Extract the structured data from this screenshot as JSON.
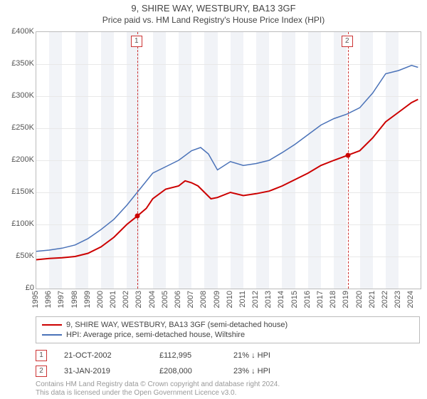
{
  "title": "9, SHIRE WAY, WESTBURY, BA13 3GF",
  "subtitle": "Price paid vs. HM Land Registry's House Price Index (HPI)",
  "chart": {
    "type": "line",
    "background_color": "#ffffff",
    "grid_color": "#e8e8e8",
    "band_color": "#f1f3f7",
    "axis_color": "#bbbbbb",
    "x_years": [
      1995,
      1996,
      1997,
      1998,
      1999,
      2000,
      2001,
      2002,
      2003,
      2004,
      2005,
      2006,
      2007,
      2008,
      2009,
      2010,
      2011,
      2012,
      2013,
      2014,
      2015,
      2016,
      2017,
      2018,
      2019,
      2020,
      2021,
      2022,
      2023,
      2024
    ],
    "ylim": [
      0,
      400000
    ],
    "ytick_step": 50000,
    "y_tick_labels": [
      "£0",
      "£50K",
      "£100K",
      "£150K",
      "£200K",
      "£250K",
      "£300K",
      "£350K",
      "£400K"
    ],
    "bands": [
      [
        1996,
        1997
      ],
      [
        1998,
        1999
      ],
      [
        2000,
        2001
      ],
      [
        2002,
        2003
      ],
      [
        2004,
        2005
      ],
      [
        2006,
        2007
      ],
      [
        2008,
        2009
      ],
      [
        2010,
        2011
      ],
      [
        2012,
        2013
      ],
      [
        2014,
        2015
      ],
      [
        2016,
        2017
      ],
      [
        2018,
        2019
      ],
      [
        2020,
        2021
      ],
      [
        2022,
        2023
      ]
    ],
    "series": [
      {
        "name": "paid",
        "label": "9, SHIRE WAY, WESTBURY, BA13 3GF (semi-detached house)",
        "color": "#cc0000",
        "width": 2,
        "data": [
          [
            1995.0,
            45000
          ],
          [
            1996.0,
            47000
          ],
          [
            1997.0,
            48000
          ],
          [
            1998.0,
            50000
          ],
          [
            1999.0,
            55000
          ],
          [
            2000.0,
            65000
          ],
          [
            2001.0,
            80000
          ],
          [
            2002.0,
            100000
          ],
          [
            2002.8,
            112995
          ],
          [
            2003.5,
            125000
          ],
          [
            2004.0,
            140000
          ],
          [
            2005.0,
            155000
          ],
          [
            2006.0,
            160000
          ],
          [
            2006.5,
            168000
          ],
          [
            2007.0,
            165000
          ],
          [
            2007.5,
            160000
          ],
          [
            2008.0,
            150000
          ],
          [
            2008.5,
            140000
          ],
          [
            2009.0,
            142000
          ],
          [
            2010.0,
            150000
          ],
          [
            2011.0,
            145000
          ],
          [
            2012.0,
            148000
          ],
          [
            2013.0,
            152000
          ],
          [
            2014.0,
            160000
          ],
          [
            2015.0,
            170000
          ],
          [
            2016.0,
            180000
          ],
          [
            2017.0,
            192000
          ],
          [
            2018.0,
            200000
          ],
          [
            2019.08,
            208000
          ],
          [
            2020.0,
            215000
          ],
          [
            2021.0,
            235000
          ],
          [
            2022.0,
            260000
          ],
          [
            2023.0,
            275000
          ],
          [
            2024.0,
            290000
          ],
          [
            2024.5,
            295000
          ]
        ]
      },
      {
        "name": "hpi",
        "label": "HPI: Average price, semi-detached house, Wiltshire",
        "color": "#4a72b8",
        "width": 1.5,
        "data": [
          [
            1995.0,
            58000
          ],
          [
            1996.0,
            60000
          ],
          [
            1997.0,
            63000
          ],
          [
            1998.0,
            68000
          ],
          [
            1999.0,
            78000
          ],
          [
            2000.0,
            92000
          ],
          [
            2001.0,
            108000
          ],
          [
            2002.0,
            130000
          ],
          [
            2003.0,
            155000
          ],
          [
            2004.0,
            180000
          ],
          [
            2005.0,
            190000
          ],
          [
            2006.0,
            200000
          ],
          [
            2007.0,
            215000
          ],
          [
            2007.7,
            220000
          ],
          [
            2008.3,
            210000
          ],
          [
            2009.0,
            185000
          ],
          [
            2010.0,
            198000
          ],
          [
            2011.0,
            192000
          ],
          [
            2012.0,
            195000
          ],
          [
            2013.0,
            200000
          ],
          [
            2014.0,
            212000
          ],
          [
            2015.0,
            225000
          ],
          [
            2016.0,
            240000
          ],
          [
            2017.0,
            255000
          ],
          [
            2018.0,
            265000
          ],
          [
            2019.0,
            272000
          ],
          [
            2020.0,
            282000
          ],
          [
            2021.0,
            305000
          ],
          [
            2022.0,
            335000
          ],
          [
            2023.0,
            340000
          ],
          [
            2024.0,
            348000
          ],
          [
            2024.5,
            345000
          ]
        ]
      }
    ],
    "markers": [
      {
        "n": "1",
        "x": 2002.8,
        "y": 112995
      },
      {
        "n": "2",
        "x": 2019.08,
        "y": 208000
      }
    ],
    "marker_color": "#cc3333"
  },
  "sales": [
    {
      "n": "1",
      "date": "21-OCT-2002",
      "price": "£112,995",
      "diff": "21% ↓ HPI"
    },
    {
      "n": "2",
      "date": "31-JAN-2019",
      "price": "£208,000",
      "diff": "23% ↓ HPI"
    }
  ],
  "license": {
    "line1": "Contains HM Land Registry data © Crown copyright and database right 2024.",
    "line2": "This data is licensed under the Open Government Licence v3.0."
  }
}
